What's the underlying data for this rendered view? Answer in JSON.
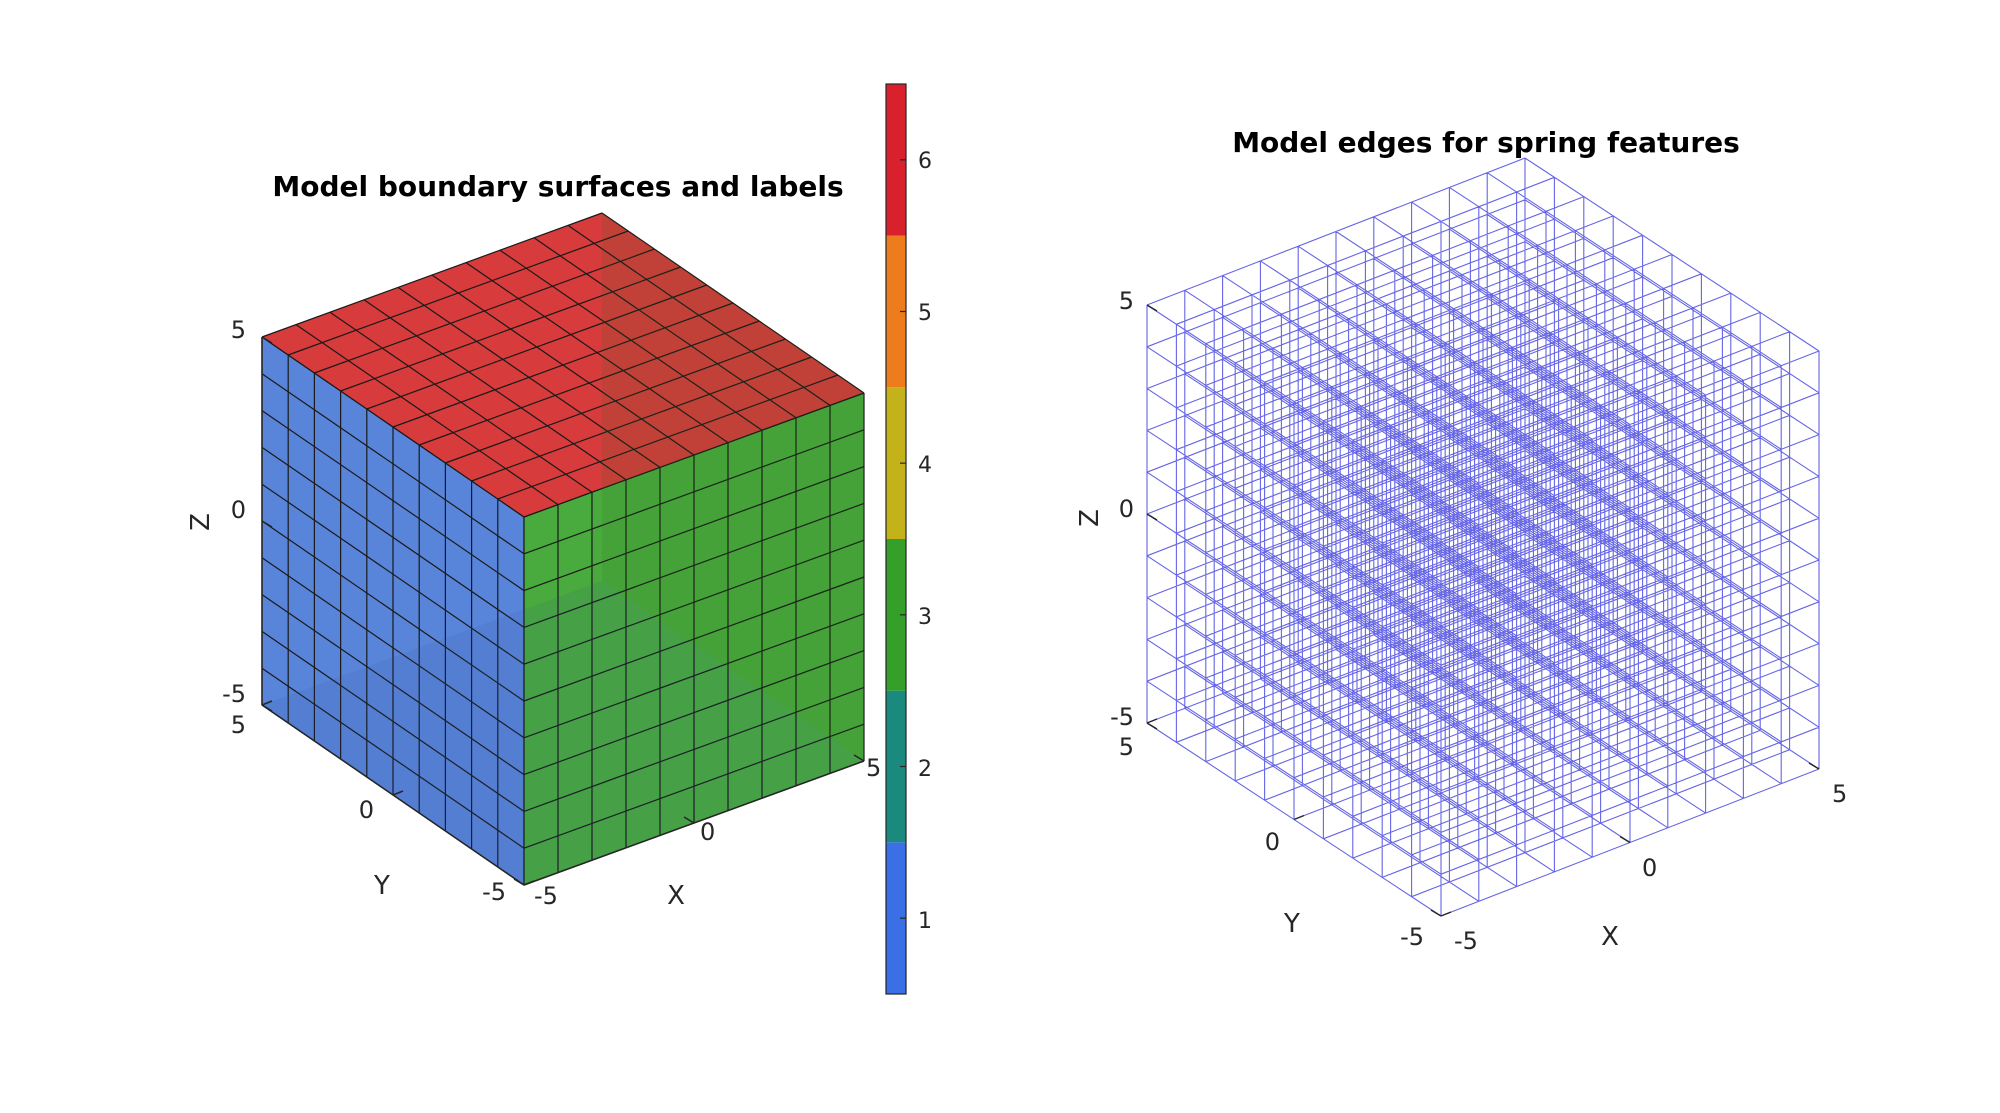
{
  "chart_data": [
    {
      "type": "3d-surface",
      "title": "Model boundary surfaces and labels",
      "xlabel": "X",
      "ylabel": "Y",
      "zlabel": "Z",
      "xlim": [
        -5,
        5
      ],
      "ylim": [
        -5,
        5
      ],
      "zlim": [
        -5,
        5
      ],
      "xticks": [
        "-5",
        "0",
        "5"
      ],
      "yticks": [
        "-5",
        "0",
        "5"
      ],
      "zticks": [
        "-5",
        "0",
        "5"
      ],
      "grid_divisions": 10,
      "view": "isometric",
      "visible_faces": [
        {
          "name": "top",
          "label": 6,
          "color": "#d42a2a"
        },
        {
          "name": "left",
          "label": 1,
          "color": "#4a79d6"
        },
        {
          "name": "right",
          "label": 3,
          "color": "#3aa32c"
        }
      ],
      "colorbar": {
        "ticks": [
          "1",
          "2",
          "3",
          "4",
          "5",
          "6"
        ],
        "range": [
          0.5,
          6.5
        ],
        "colors": [
          "#3a6fe6",
          "#1a8a7e",
          "#34a02a",
          "#c4b21a",
          "#ec7c1c",
          "#d9212e"
        ]
      }
    },
    {
      "type": "3d-wireframe",
      "title": "Model edges for spring features",
      "xlabel": "X",
      "ylabel": "Y",
      "zlabel": "Z",
      "xlim": [
        -5,
        5
      ],
      "ylim": [
        -5,
        5
      ],
      "zlim": [
        -5,
        5
      ],
      "xticks": [
        "-5",
        "0",
        "5"
      ],
      "yticks": [
        "-5",
        "0",
        "5"
      ],
      "zticks": [
        "-5",
        "0",
        "5"
      ],
      "grid_divisions": 10,
      "view": "isometric",
      "edge_color": "#4a4ae0"
    }
  ]
}
